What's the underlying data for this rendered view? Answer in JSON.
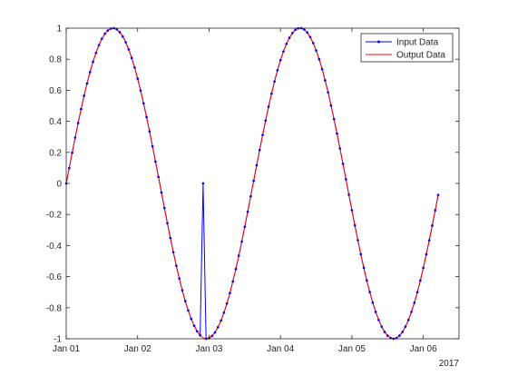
{
  "chart_data": {
    "type": "line",
    "x_axis": {
      "type": "date",
      "range": [
        "2017-01-01T00:00",
        "2017-01-06T12:00"
      ],
      "ticks": [
        "2017-01-01",
        "2017-01-02",
        "2017-01-03",
        "2017-01-04",
        "2017-01-05",
        "2017-01-06"
      ],
      "tick_labels": [
        "Jan 01",
        "Jan 02",
        "Jan 03",
        "Jan 04",
        "Jan 05",
        "Jan 06"
      ],
      "secondary_label": "2017"
    },
    "y_axis": {
      "range": [
        -1,
        1
      ],
      "ticks": [
        -1,
        -0.8,
        -0.6,
        -0.4,
        -0.2,
        0,
        0.2,
        0.4,
        0.6,
        0.8,
        1
      ],
      "tick_labels": [
        "-1",
        "-0.8",
        "-0.6",
        "-0.4",
        "-0.2",
        "0",
        "0.2",
        "0.4",
        "0.6",
        "0.8",
        "1"
      ]
    },
    "grid": false,
    "legend_position": "top-right",
    "series": [
      {
        "name": "Input Data",
        "color": "#0000ff",
        "marker": "dot",
        "description": "sin wave sampled every 1 hour with a dropout: the sample at 2017-01-02T22:00 is 0",
        "x": [
          "2017-01-01T00:00",
          "2017-01-01T01:00",
          "2017-01-01T02:00",
          "2017-01-01T03:00",
          "2017-01-01T04:00",
          "2017-01-01T05:00",
          "2017-01-01T06:00",
          "2017-01-01T07:00",
          "2017-01-01T08:00",
          "2017-01-01T09:00",
          "2017-01-01T10:00",
          "2017-01-01T11:00",
          "2017-01-01T12:00",
          "2017-01-01T13:00",
          "2017-01-01T14:00",
          "2017-01-01T15:00",
          "2017-01-01T16:00",
          "2017-01-01T17:00",
          "2017-01-01T18:00",
          "2017-01-01T19:00",
          "2017-01-01T20:00",
          "2017-01-01T21:00",
          "2017-01-01T22:00",
          "2017-01-01T23:00",
          "2017-01-02T00:00",
          "2017-01-02T01:00",
          "2017-01-02T02:00",
          "2017-01-02T03:00",
          "2017-01-02T04:00",
          "2017-01-02T05:00",
          "2017-01-02T06:00",
          "2017-01-02T07:00",
          "2017-01-02T08:00",
          "2017-01-02T09:00",
          "2017-01-02T10:00",
          "2017-01-02T11:00",
          "2017-01-02T12:00",
          "2017-01-02T13:00",
          "2017-01-02T14:00",
          "2017-01-02T15:00",
          "2017-01-02T16:00",
          "2017-01-02T17:00",
          "2017-01-02T18:00",
          "2017-01-02T19:00",
          "2017-01-02T20:00",
          "2017-01-02T21:00",
          "2017-01-02T22:00",
          "2017-01-02T23:00",
          "2017-01-03T00:00",
          "2017-01-03T01:00",
          "2017-01-03T02:00",
          "2017-01-03T03:00",
          "2017-01-03T04:00",
          "2017-01-03T05:00",
          "2017-01-03T06:00",
          "2017-01-03T07:00",
          "2017-01-03T08:00",
          "2017-01-03T09:00",
          "2017-01-03T10:00",
          "2017-01-03T11:00",
          "2017-01-03T12:00",
          "2017-01-03T13:00",
          "2017-01-03T14:00",
          "2017-01-03T15:00",
          "2017-01-03T16:00",
          "2017-01-03T17:00",
          "2017-01-03T18:00",
          "2017-01-03T19:00",
          "2017-01-03T20:00",
          "2017-01-03T21:00",
          "2017-01-03T22:00",
          "2017-01-03T23:00",
          "2017-01-04T00:00",
          "2017-01-04T01:00",
          "2017-01-04T02:00",
          "2017-01-04T03:00",
          "2017-01-04T04:00",
          "2017-01-04T05:00",
          "2017-01-04T06:00",
          "2017-01-04T07:00",
          "2017-01-04T08:00",
          "2017-01-04T09:00",
          "2017-01-04T10:00",
          "2017-01-04T11:00",
          "2017-01-04T12:00",
          "2017-01-04T13:00",
          "2017-01-04T14:00",
          "2017-01-04T15:00",
          "2017-01-04T16:00",
          "2017-01-04T17:00",
          "2017-01-04T18:00",
          "2017-01-04T19:00",
          "2017-01-04T20:00",
          "2017-01-04T21:00",
          "2017-01-04T22:00",
          "2017-01-04T23:00",
          "2017-01-05T00:00",
          "2017-01-05T01:00",
          "2017-01-05T02:00",
          "2017-01-05T03:00",
          "2017-01-05T04:00",
          "2017-01-05T05:00",
          "2017-01-05T06:00",
          "2017-01-05T07:00",
          "2017-01-05T08:00",
          "2017-01-05T09:00",
          "2017-01-05T10:00",
          "2017-01-05T11:00",
          "2017-01-05T12:00",
          "2017-01-05T13:00",
          "2017-01-05T14:00",
          "2017-01-05T15:00",
          "2017-01-05T16:00",
          "2017-01-05T17:00",
          "2017-01-05T18:00",
          "2017-01-05T19:00",
          "2017-01-05T20:00",
          "2017-01-05T21:00",
          "2017-01-05T22:00",
          "2017-01-05T23:00",
          "2017-01-06T00:00",
          "2017-01-06T01:00",
          "2017-01-06T02:00",
          "2017-01-06T03:00",
          "2017-01-06T04:00",
          "2017-01-06T05:00"
        ],
        "y": [
          0.0,
          0.099,
          0.198,
          0.295,
          0.389,
          0.479,
          0.565,
          0.644,
          0.717,
          0.783,
          0.841,
          0.891,
          0.932,
          0.964,
          0.985,
          0.997,
          1.0,
          0.992,
          0.974,
          0.946,
          0.909,
          0.863,
          0.808,
          0.746,
          0.675,
          0.598,
          0.516,
          0.427,
          0.335,
          0.239,
          0.141,
          0.042,
          -0.058,
          -0.158,
          -0.256,
          -0.351,
          -0.443,
          -0.53,
          -0.612,
          -0.688,
          -0.757,
          -0.818,
          -0.872,
          -0.916,
          -0.952,
          -0.978,
          0.0,
          -1.0,
          -0.996,
          -0.982,
          -0.959,
          -0.926,
          -0.883,
          -0.832,
          -0.773,
          -0.706,
          -0.631,
          -0.551,
          -0.465,
          -0.374,
          -0.279,
          -0.182,
          -0.083,
          0.017,
          0.117,
          0.215,
          0.312,
          0.405,
          0.494,
          0.578,
          0.657,
          0.729,
          0.794,
          0.85,
          0.899,
          0.938,
          0.968,
          0.989,
          0.999,
          1.0,
          0.991,
          0.972,
          0.942,
          0.904,
          0.856,
          0.8,
          0.736,
          0.664,
          0.586,
          0.502,
          0.414,
          0.321,
          0.225,
          0.126,
          0.027,
          -0.073,
          -0.172,
          -0.27,
          -0.365,
          -0.456,
          -0.543,
          -0.624,
          -0.699,
          -0.767,
          -0.827,
          -0.879,
          -0.922,
          -0.956,
          -0.98,
          -0.995,
          -1.0,
          -0.995,
          -0.98,
          -0.956,
          -0.922,
          -0.879,
          -0.827,
          -0.768,
          -0.7,
          -0.625,
          -0.543,
          -0.457,
          -0.366,
          -0.271,
          -0.173,
          -0.074
        ]
      },
      {
        "name": "Output Data",
        "color": "#ff0000",
        "marker": "none",
        "description": "same sin wave with the dropout filled",
        "x": [
          "2017-01-01T00:00",
          "2017-01-01T01:00",
          "2017-01-01T02:00",
          "2017-01-01T03:00",
          "2017-01-01T04:00",
          "2017-01-01T05:00",
          "2017-01-01T06:00",
          "2017-01-01T07:00",
          "2017-01-01T08:00",
          "2017-01-01T09:00",
          "2017-01-01T10:00",
          "2017-01-01T11:00",
          "2017-01-01T12:00",
          "2017-01-01T13:00",
          "2017-01-01T14:00",
          "2017-01-01T15:00",
          "2017-01-01T16:00",
          "2017-01-01T17:00",
          "2017-01-01T18:00",
          "2017-01-01T19:00",
          "2017-01-01T20:00",
          "2017-01-01T21:00",
          "2017-01-01T22:00",
          "2017-01-01T23:00",
          "2017-01-02T00:00",
          "2017-01-02T01:00",
          "2017-01-02T02:00",
          "2017-01-02T03:00",
          "2017-01-02T04:00",
          "2017-01-02T05:00",
          "2017-01-02T06:00",
          "2017-01-02T07:00",
          "2017-01-02T08:00",
          "2017-01-02T09:00",
          "2017-01-02T10:00",
          "2017-01-02T11:00",
          "2017-01-02T12:00",
          "2017-01-02T13:00",
          "2017-01-02T14:00",
          "2017-01-02T15:00",
          "2017-01-02T16:00",
          "2017-01-02T17:00",
          "2017-01-02T18:00",
          "2017-01-02T19:00",
          "2017-01-02T20:00",
          "2017-01-02T21:00",
          "2017-01-02T22:00",
          "2017-01-02T23:00",
          "2017-01-03T00:00",
          "2017-01-03T01:00",
          "2017-01-03T02:00",
          "2017-01-03T03:00",
          "2017-01-03T04:00",
          "2017-01-03T05:00",
          "2017-01-03T06:00",
          "2017-01-03T07:00",
          "2017-01-03T08:00",
          "2017-01-03T09:00",
          "2017-01-03T10:00",
          "2017-01-03T11:00",
          "2017-01-03T12:00",
          "2017-01-03T13:00",
          "2017-01-03T14:00",
          "2017-01-03T15:00",
          "2017-01-03T16:00",
          "2017-01-03T17:00",
          "2017-01-03T18:00",
          "2017-01-03T19:00",
          "2017-01-03T20:00",
          "2017-01-03T21:00",
          "2017-01-03T22:00",
          "2017-01-03T23:00",
          "2017-01-04T00:00",
          "2017-01-04T01:00",
          "2017-01-04T02:00",
          "2017-01-04T03:00",
          "2017-01-04T04:00",
          "2017-01-04T05:00",
          "2017-01-04T06:00",
          "2017-01-04T07:00",
          "2017-01-04T08:00",
          "2017-01-04T09:00",
          "2017-01-04T10:00",
          "2017-01-04T11:00",
          "2017-01-04T12:00",
          "2017-01-04T13:00",
          "2017-01-04T14:00",
          "2017-01-04T15:00",
          "2017-01-04T16:00",
          "2017-01-04T17:00",
          "2017-01-04T18:00",
          "2017-01-04T19:00",
          "2017-01-04T20:00",
          "2017-01-04T21:00",
          "2017-01-04T22:00",
          "2017-01-04T23:00",
          "2017-01-05T00:00",
          "2017-01-05T01:00",
          "2017-01-05T02:00",
          "2017-01-05T03:00",
          "2017-01-05T04:00",
          "2017-01-05T05:00",
          "2017-01-05T06:00",
          "2017-01-05T07:00",
          "2017-01-05T08:00",
          "2017-01-05T09:00",
          "2017-01-05T10:00",
          "2017-01-05T11:00",
          "2017-01-05T12:00",
          "2017-01-05T13:00",
          "2017-01-05T14:00",
          "2017-01-05T15:00",
          "2017-01-05T16:00",
          "2017-01-05T17:00",
          "2017-01-05T18:00",
          "2017-01-05T19:00",
          "2017-01-05T20:00",
          "2017-01-05T21:00",
          "2017-01-05T22:00",
          "2017-01-05T23:00",
          "2017-01-06T00:00",
          "2017-01-06T01:00",
          "2017-01-06T02:00",
          "2017-01-06T03:00",
          "2017-01-06T04:00",
          "2017-01-06T05:00"
        ],
        "y": [
          0.0,
          0.099,
          0.198,
          0.295,
          0.389,
          0.479,
          0.565,
          0.644,
          0.717,
          0.783,
          0.841,
          0.891,
          0.932,
          0.964,
          0.985,
          0.997,
          1.0,
          0.992,
          0.974,
          0.946,
          0.909,
          0.863,
          0.808,
          0.746,
          0.675,
          0.598,
          0.516,
          0.427,
          0.335,
          0.239,
          0.141,
          0.042,
          -0.058,
          -0.158,
          -0.256,
          -0.351,
          -0.443,
          -0.53,
          -0.612,
          -0.688,
          -0.757,
          -0.818,
          -0.872,
          -0.916,
          -0.952,
          -0.978,
          -0.994,
          -1.0,
          -0.996,
          -0.982,
          -0.959,
          -0.926,
          -0.883,
          -0.832,
          -0.773,
          -0.706,
          -0.631,
          -0.551,
          -0.465,
          -0.374,
          -0.279,
          -0.182,
          -0.083,
          0.017,
          0.117,
          0.215,
          0.312,
          0.405,
          0.494,
          0.578,
          0.657,
          0.729,
          0.794,
          0.85,
          0.899,
          0.938,
          0.968,
          0.989,
          0.999,
          1.0,
          0.991,
          0.972,
          0.942,
          0.904,
          0.856,
          0.8,
          0.736,
          0.664,
          0.586,
          0.502,
          0.414,
          0.321,
          0.225,
          0.126,
          0.027,
          -0.073,
          -0.172,
          -0.27,
          -0.365,
          -0.456,
          -0.543,
          -0.624,
          -0.699,
          -0.767,
          -0.827,
          -0.879,
          -0.922,
          -0.956,
          -0.98,
          -0.995,
          -1.0,
          -0.995,
          -0.98,
          -0.956,
          -0.922,
          -0.879,
          -0.827,
          -0.768,
          -0.7,
          -0.625,
          -0.543,
          -0.457,
          -0.366,
          -0.271,
          -0.173,
          -0.074
        ]
      }
    ]
  }
}
